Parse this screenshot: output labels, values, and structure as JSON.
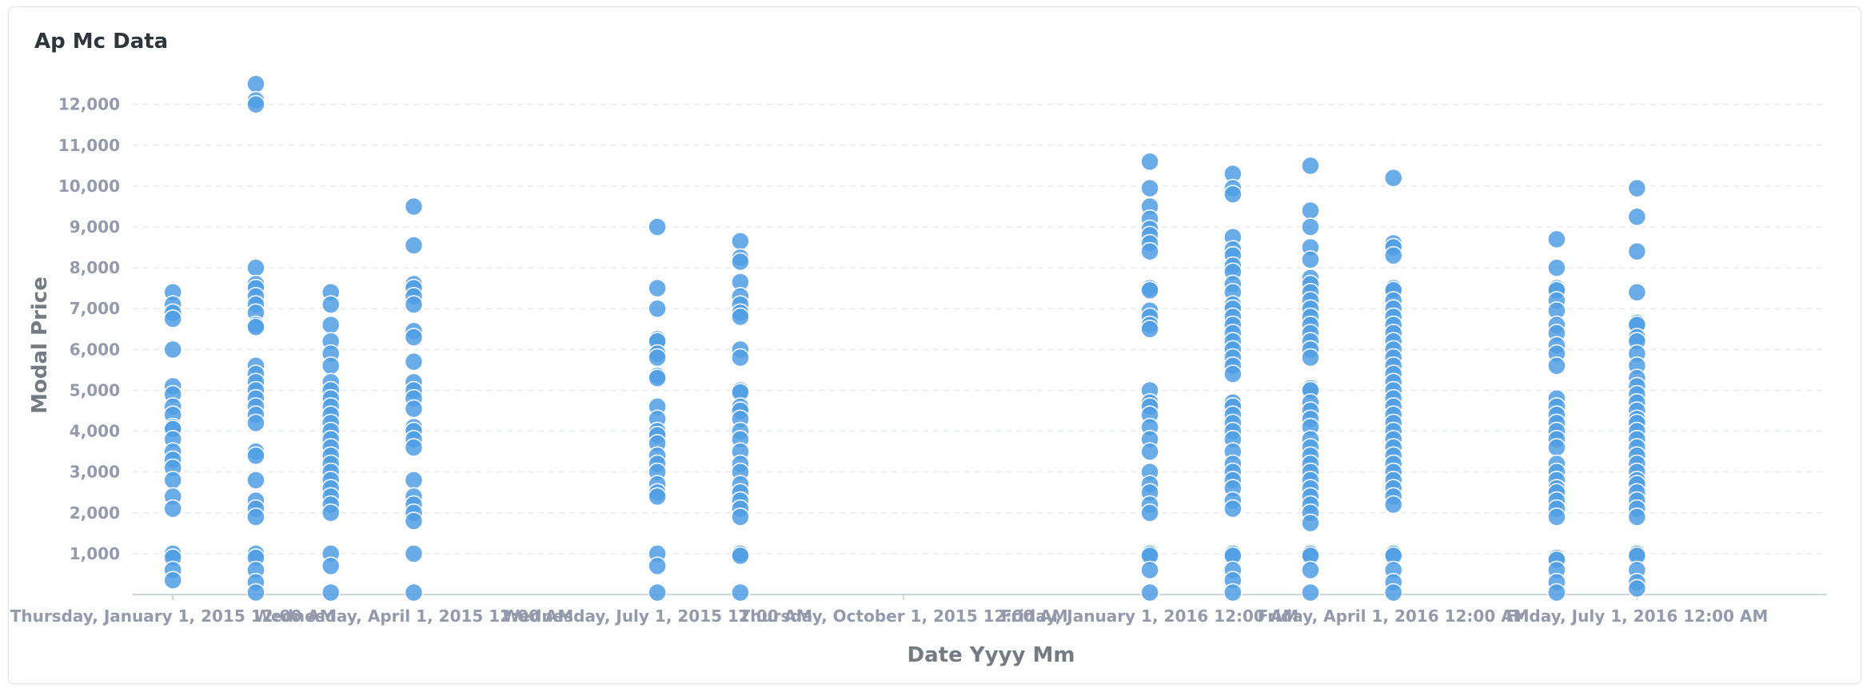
{
  "card": {
    "title": "Ap Mc Data"
  },
  "chart_data": {
    "type": "scatter",
    "title": "Ap Mc Data",
    "xlabel": "Date Yyyy Mm",
    "ylabel": "Modal Price",
    "ylim": [
      0,
      12600
    ],
    "yticks": [
      1000,
      2000,
      3000,
      4000,
      5000,
      6000,
      7000,
      8000,
      9000,
      10000,
      11000,
      12000
    ],
    "ytick_labels": [
      "1,000",
      "2,000",
      "3,000",
      "4,000",
      "5,000",
      "6,000",
      "7,000",
      "8,000",
      "9,000",
      "10,000",
      "11,000",
      "12,000"
    ],
    "xlim": [
      "2014-12-17",
      "2016-09-10"
    ],
    "xticks": [
      {
        "date": "2015-01-01",
        "label": "Thursday, January 1, 2015 12:00 AM"
      },
      {
        "date": "2015-04-01",
        "label": "Wednesday, April 1, 2015 12:00 AM"
      },
      {
        "date": "2015-07-01",
        "label": "Wednesday, July 1, 2015 12:00 AM"
      },
      {
        "date": "2015-10-01",
        "label": "Thursday, October 1, 2015 12:00 AM"
      },
      {
        "date": "2016-01-01",
        "label": "Friday, January 1, 2016 12:00 AM"
      },
      {
        "date": "2016-04-01",
        "label": "Friday, April 1, 2016 12:00 AM"
      },
      {
        "date": "2016-07-01",
        "label": "Friday, July 1, 2016 12:00 AM"
      }
    ],
    "grid": true,
    "point_color": "#509ee3",
    "series": [
      {
        "x": "2015-01-01",
        "y": [
          7400,
          7100,
          6900,
          6750,
          6000,
          5100,
          4900,
          4600,
          4400,
          4100,
          4050,
          3800,
          3500,
          3300,
          3100,
          2800,
          2400,
          2100,
          1000,
          900,
          600,
          350
        ]
      },
      {
        "x": "2015-02-01",
        "y": [
          12500,
          12100,
          12000,
          8000,
          7600,
          7500,
          7300,
          7100,
          6900,
          6600,
          6550,
          5600,
          5400,
          5200,
          5000,
          4800,
          4600,
          4400,
          4200,
          3500,
          3400,
          2800,
          2300,
          2100,
          1900,
          1000,
          900,
          600,
          300,
          50
        ]
      },
      {
        "x": "2015-03-01",
        "y": [
          7400,
          7100,
          6600,
          6200,
          5900,
          5600,
          5200,
          5000,
          4800,
          4600,
          4400,
          4200,
          4000,
          3800,
          3600,
          3400,
          3200,
          3000,
          2800,
          2600,
          2400,
          2200,
          2000,
          1000,
          700,
          50
        ]
      },
      {
        "x": "2015-04-01",
        "y": [
          9500,
          8550,
          7600,
          7500,
          7300,
          7100,
          6450,
          6300,
          5700,
          5200,
          5000,
          4800,
          4550,
          4100,
          4000,
          3800,
          3600,
          2800,
          2400,
          2200,
          2000,
          1800,
          1000,
          50
        ]
      },
      {
        "x": "2015-07-01",
        "y": [
          9000,
          7500,
          7000,
          6250,
          6200,
          5900,
          5800,
          5350,
          5300,
          4600,
          4300,
          4000,
          3900,
          3700,
          3400,
          3200,
          3000,
          2700,
          2500,
          2400,
          1000,
          700,
          50
        ]
      },
      {
        "x": "2015-08-01",
        "y": [
          8650,
          8250,
          8150,
          7650,
          7300,
          7100,
          6900,
          6800,
          6000,
          5800,
          5000,
          4950,
          4600,
          4500,
          4300,
          4000,
          3800,
          3500,
          3200,
          3000,
          2700,
          2500,
          2300,
          2100,
          1900,
          1000,
          950,
          50
        ]
      },
      {
        "x": "2016-01-01",
        "y": [
          10600,
          9950,
          9500,
          9200,
          8950,
          8800,
          8600,
          8400,
          7500,
          7450,
          6950,
          6800,
          6600,
          6500,
          5000,
          4700,
          4600,
          4400,
          4100,
          3800,
          3500,
          3000,
          2700,
          2500,
          2200,
          2000,
          1000,
          950,
          600,
          50
        ]
      },
      {
        "x": "2016-02-01",
        "y": [
          10300,
          9950,
          9800,
          8750,
          8450,
          8300,
          8050,
          7900,
          7600,
          7400,
          7100,
          7000,
          6800,
          6600,
          6400,
          6200,
          6000,
          5800,
          5600,
          5400,
          4700,
          4600,
          4400,
          4200,
          4000,
          3800,
          3500,
          3200,
          3000,
          2800,
          2600,
          2300,
          2100,
          1000,
          950,
          600,
          350,
          50
        ]
      },
      {
        "x": "2016-03-01",
        "y": [
          10500,
          9400,
          9000,
          8500,
          8200,
          7750,
          7600,
          7400,
          7200,
          7000,
          6800,
          6600,
          6400,
          6200,
          6000,
          5800,
          5050,
          5000,
          4700,
          4500,
          4300,
          4100,
          3800,
          3600,
          3400,
          3200,
          3000,
          2800,
          2600,
          2400,
          2200,
          2000,
          1750,
          1000,
          950,
          600,
          50
        ]
      },
      {
        "x": "2016-04-01",
        "y": [
          10200,
          8600,
          8500,
          8300,
          7500,
          7450,
          7200,
          7000,
          6800,
          6600,
          6400,
          6200,
          6000,
          5800,
          5600,
          5400,
          5200,
          5000,
          4800,
          4600,
          4400,
          4200,
          4000,
          3800,
          3600,
          3400,
          3200,
          3000,
          2800,
          2600,
          2400,
          2200,
          1000,
          950,
          600,
          300,
          50
        ]
      },
      {
        "x": "2016-06-01",
        "y": [
          8700,
          8000,
          7500,
          7450,
          7200,
          6950,
          6600,
          6400,
          6100,
          5900,
          5600,
          4800,
          4600,
          4400,
          4200,
          4000,
          3800,
          3600,
          3200,
          3000,
          2800,
          2600,
          2500,
          2300,
          2100,
          1900,
          900,
          850,
          600,
          300,
          50
        ]
      },
      {
        "x": "2016-07-01",
        "y": [
          9950,
          9250,
          8400,
          7400,
          6650,
          6600,
          6300,
          6200,
          5900,
          5600,
          5300,
          5100,
          4900,
          4700,
          4500,
          4300,
          4200,
          4000,
          3800,
          3600,
          3400,
          3200,
          3000,
          2800,
          2700,
          2500,
          2300,
          2100,
          1900,
          1000,
          950,
          600,
          300,
          150
        ]
      }
    ]
  }
}
